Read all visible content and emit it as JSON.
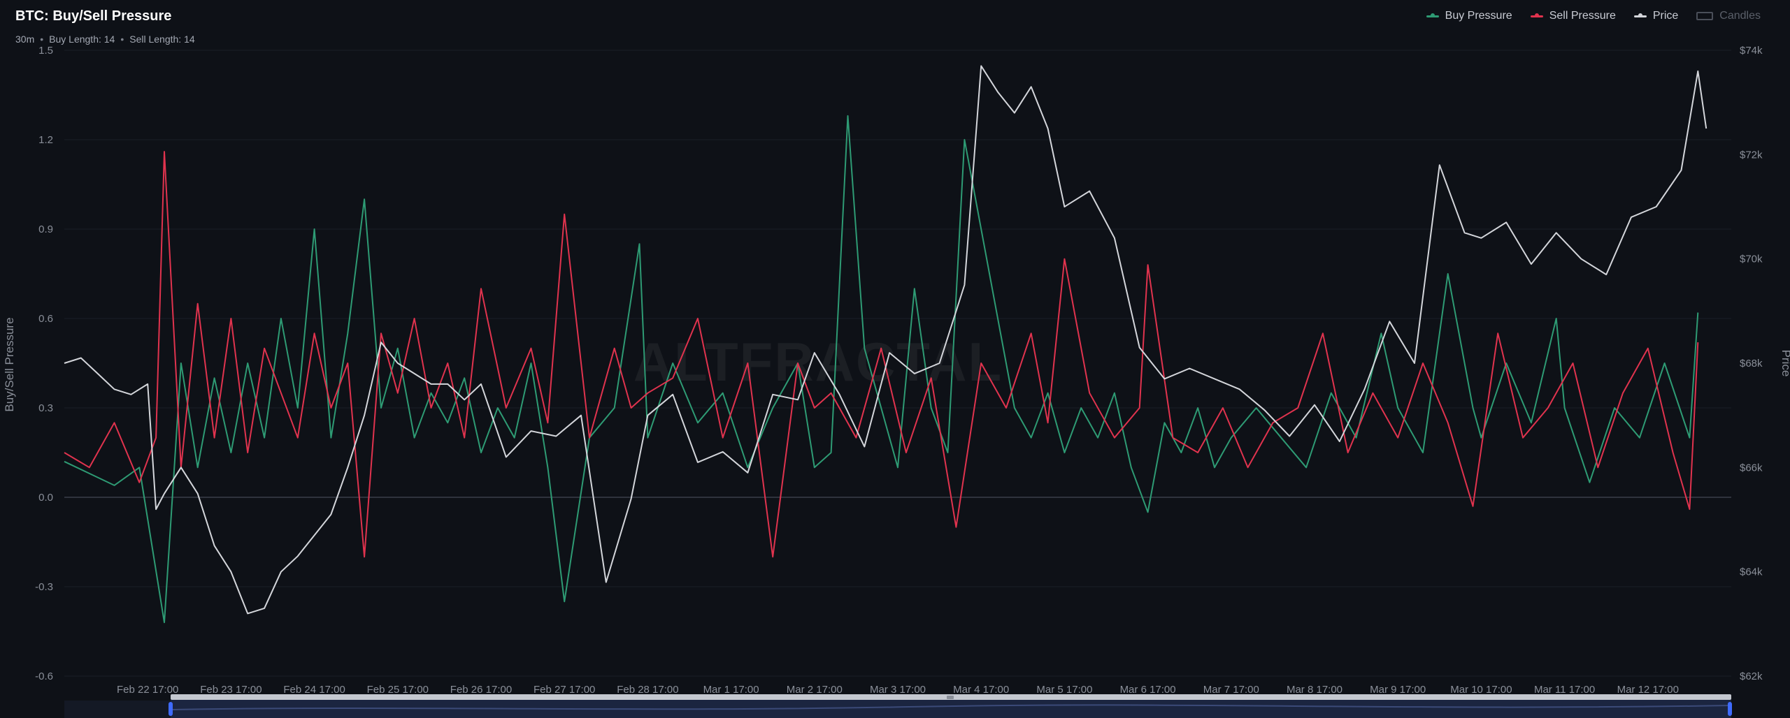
{
  "header": {
    "title": "BTC: Buy/Sell Pressure",
    "subtitle": {
      "interval": "30m",
      "buy_length": "Buy Length: 14",
      "sell_length": "Sell Length: 14"
    }
  },
  "legend": [
    {
      "label": "Buy Pressure",
      "color": "#2e9b74",
      "enabled": true
    },
    {
      "label": "Sell Pressure",
      "color": "#e0334e",
      "enabled": true
    },
    {
      "label": "Price",
      "color": "#d4d6db",
      "enabled": true
    },
    {
      "label": "Candles",
      "color": "#4a4f59",
      "enabled": false
    }
  ],
  "watermark": "ALTFRACTAL",
  "chart_data": {
    "type": "line",
    "title": "BTC: Buy/Sell Pressure",
    "ylabel": "Buy/Sell Pressure",
    "y2label": "Price",
    "ylim": [
      -0.6,
      1.5
    ],
    "yticks": [
      "1.5",
      "1.2",
      "0.9",
      "0.6",
      "0.3",
      "0.0",
      "-0.3",
      "-0.6"
    ],
    "y2lim": [
      62000,
      74000
    ],
    "y2ticks": [
      "$74k",
      "$72k",
      "$70k",
      "$68k",
      "$66k",
      "$64k",
      "$62k"
    ],
    "xlim": [
      0,
      20
    ],
    "xticks": [
      {
        "x": 1,
        "label": "Feb 22 17:00"
      },
      {
        "x": 2,
        "label": "Feb 23 17:00"
      },
      {
        "x": 3,
        "label": "Feb 24 17:00"
      },
      {
        "x": 4,
        "label": "Feb 25 17:00"
      },
      {
        "x": 5,
        "label": "Feb 26 17:00"
      },
      {
        "x": 6,
        "label": "Feb 27 17:00"
      },
      {
        "x": 7,
        "label": "Feb 28 17:00"
      },
      {
        "x": 8,
        "label": "Mar 1 17:00"
      },
      {
        "x": 9,
        "label": "Mar 2 17:00"
      },
      {
        "x": 10,
        "label": "Mar 3 17:00"
      },
      {
        "x": 11,
        "label": "Mar 4 17:00"
      },
      {
        "x": 12,
        "label": "Mar 5 17:00"
      },
      {
        "x": 13,
        "label": "Mar 6 17:00"
      },
      {
        "x": 14,
        "label": "Mar 7 17:00"
      },
      {
        "x": 15,
        "label": "Mar 8 17:00"
      },
      {
        "x": 16,
        "label": "Mar 9 17:00"
      },
      {
        "x": 17,
        "label": "Mar 10 17:00"
      },
      {
        "x": 18,
        "label": "Mar 11 17:00"
      },
      {
        "x": 19,
        "label": "Mar 12 17:00"
      }
    ],
    "grid": true,
    "series": [
      {
        "name": "Buy Pressure",
        "axis": "left",
        "color": "#2e9b74",
        "x": [
          0.0,
          0.3,
          0.6,
          0.9,
          1.2,
          1.4,
          1.6,
          1.8,
          2.0,
          2.2,
          2.4,
          2.6,
          2.8,
          3.0,
          3.2,
          3.4,
          3.6,
          3.8,
          4.0,
          4.2,
          4.4,
          4.6,
          4.8,
          5.0,
          5.2,
          5.4,
          5.6,
          5.8,
          6.0,
          6.3,
          6.6,
          6.9,
          7.0,
          7.3,
          7.6,
          7.9,
          8.2,
          8.5,
          8.8,
          9.0,
          9.2,
          9.4,
          9.6,
          9.8,
          10.0,
          10.2,
          10.4,
          10.6,
          10.8,
          11.0,
          11.2,
          11.4,
          11.6,
          11.8,
          12.0,
          12.2,
          12.4,
          12.6,
          12.8,
          13.0,
          13.2,
          13.4,
          13.6,
          13.8,
          14.0,
          14.3,
          14.6,
          14.9,
          15.2,
          15.5,
          15.8,
          16.0,
          16.3,
          16.6,
          16.9,
          17.0,
          17.3,
          17.6,
          17.9,
          18.0,
          18.3,
          18.6,
          18.9,
          19.2,
          19.5,
          19.6
        ],
        "values": [
          0.12,
          0.08,
          0.04,
          0.1,
          -0.42,
          0.45,
          0.1,
          0.4,
          0.15,
          0.45,
          0.2,
          0.6,
          0.3,
          0.9,
          0.2,
          0.55,
          1.0,
          0.3,
          0.5,
          0.2,
          0.35,
          0.25,
          0.4,
          0.15,
          0.3,
          0.2,
          0.45,
          0.1,
          -0.35,
          0.2,
          0.3,
          0.85,
          0.2,
          0.45,
          0.25,
          0.35,
          0.1,
          0.3,
          0.45,
          0.1,
          0.15,
          1.28,
          0.5,
          0.3,
          0.1,
          0.7,
          0.3,
          0.15,
          1.2,
          0.9,
          0.6,
          0.3,
          0.2,
          0.35,
          0.15,
          0.3,
          0.2,
          0.35,
          0.1,
          -0.05,
          0.25,
          0.15,
          0.3,
          0.1,
          0.2,
          0.3,
          0.2,
          0.1,
          0.35,
          0.2,
          0.55,
          0.3,
          0.15,
          0.75,
          0.3,
          0.2,
          0.45,
          0.25,
          0.6,
          0.3,
          0.05,
          0.3,
          0.2,
          0.45,
          0.2,
          0.62
        ]
      },
      {
        "name": "Sell Pressure",
        "axis": "left",
        "color": "#e0334e",
        "x": [
          0.0,
          0.3,
          0.6,
          0.9,
          1.1,
          1.2,
          1.4,
          1.6,
          1.8,
          2.0,
          2.2,
          2.4,
          2.6,
          2.8,
          3.0,
          3.2,
          3.4,
          3.6,
          3.8,
          4.0,
          4.2,
          4.4,
          4.6,
          4.8,
          5.0,
          5.3,
          5.6,
          5.8,
          6.0,
          6.3,
          6.6,
          6.8,
          7.0,
          7.3,
          7.6,
          7.9,
          8.2,
          8.5,
          8.8,
          9.0,
          9.2,
          9.5,
          9.8,
          10.1,
          10.4,
          10.7,
          11.0,
          11.3,
          11.6,
          11.8,
          12.0,
          12.3,
          12.6,
          12.9,
          13.0,
          13.3,
          13.6,
          13.9,
          14.2,
          14.5,
          14.8,
          15.1,
          15.4,
          15.7,
          16.0,
          16.3,
          16.6,
          16.9,
          17.2,
          17.5,
          17.8,
          18.1,
          18.4,
          18.7,
          19.0,
          19.3,
          19.5,
          19.6
        ],
        "values": [
          0.15,
          0.1,
          0.25,
          0.05,
          0.2,
          1.16,
          0.1,
          0.65,
          0.2,
          0.6,
          0.15,
          0.5,
          0.35,
          0.2,
          0.55,
          0.3,
          0.45,
          -0.2,
          0.55,
          0.35,
          0.6,
          0.3,
          0.45,
          0.2,
          0.7,
          0.3,
          0.5,
          0.25,
          0.95,
          0.2,
          0.5,
          0.3,
          0.35,
          0.4,
          0.6,
          0.2,
          0.45,
          -0.2,
          0.45,
          0.3,
          0.35,
          0.2,
          0.5,
          0.15,
          0.4,
          -0.1,
          0.45,
          0.3,
          0.55,
          0.25,
          0.8,
          0.35,
          0.2,
          0.3,
          0.78,
          0.2,
          0.15,
          0.3,
          0.1,
          0.25,
          0.3,
          0.55,
          0.15,
          0.35,
          0.2,
          0.45,
          0.25,
          -0.03,
          0.55,
          0.2,
          0.3,
          0.45,
          0.1,
          0.35,
          0.5,
          0.15,
          -0.04,
          0.52
        ]
      },
      {
        "name": "Price",
        "axis": "right",
        "color": "#d4d6db",
        "x": [
          0.0,
          0.2,
          0.4,
          0.6,
          0.8,
          1.0,
          1.1,
          1.2,
          1.4,
          1.6,
          1.8,
          2.0,
          2.2,
          2.4,
          2.6,
          2.8,
          3.0,
          3.2,
          3.4,
          3.6,
          3.8,
          4.0,
          4.2,
          4.4,
          4.6,
          4.8,
          5.0,
          5.3,
          5.6,
          5.9,
          6.2,
          6.5,
          6.8,
          7.0,
          7.3,
          7.6,
          7.9,
          8.2,
          8.5,
          8.8,
          9.0,
          9.3,
          9.6,
          9.9,
          10.2,
          10.5,
          10.8,
          11.0,
          11.2,
          11.4,
          11.6,
          11.8,
          12.0,
          12.3,
          12.6,
          12.9,
          13.2,
          13.5,
          13.8,
          14.1,
          14.4,
          14.7,
          15.0,
          15.3,
          15.6,
          15.9,
          16.2,
          16.5,
          16.8,
          17.0,
          17.3,
          17.6,
          17.9,
          18.2,
          18.5,
          18.8,
          19.1,
          19.4,
          19.6,
          19.7
        ],
        "values": [
          68000,
          68100,
          67800,
          67500,
          67400,
          67600,
          65200,
          65500,
          66000,
          65500,
          64500,
          64000,
          63200,
          63300,
          64000,
          64300,
          64700,
          65100,
          66000,
          67000,
          68400,
          68000,
          67800,
          67600,
          67600,
          67300,
          67600,
          66200,
          66700,
          66600,
          67000,
          63800,
          65400,
          67000,
          67400,
          66100,
          66300,
          65900,
          67400,
          67300,
          68200,
          67400,
          66400,
          68200,
          67800,
          68000,
          69500,
          73700,
          73200,
          72800,
          73300,
          72500,
          71000,
          71300,
          70400,
          68300,
          67700,
          67900,
          67700,
          67500,
          67100,
          66600,
          67200,
          66500,
          67500,
          68800,
          68000,
          71800,
          70500,
          70400,
          70700,
          69900,
          70500,
          70000,
          69700,
          70800,
          71000,
          71700,
          73600,
          72500
        ]
      }
    ]
  }
}
